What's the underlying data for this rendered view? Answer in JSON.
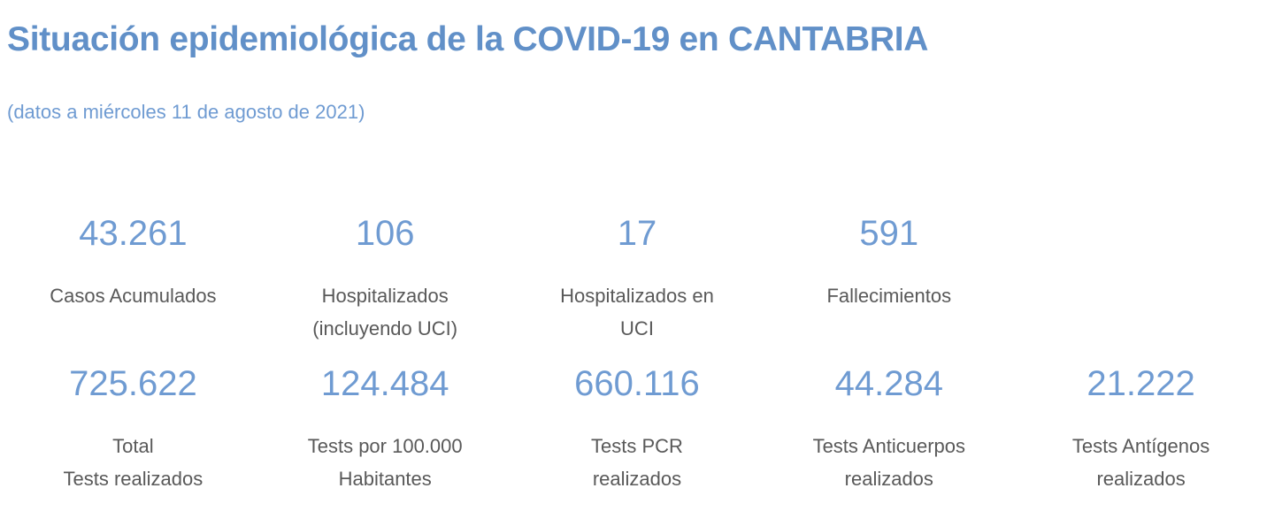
{
  "header": {
    "title": "Situación epidemiológica de la COVID-19 en CANTABRIA",
    "subtitle": "(datos a miércoles 11 de agosto de 2021)"
  },
  "colors": {
    "title_blue": "#6190c8",
    "accent_blue": "#6f9bd2",
    "label_gray": "#595959",
    "background": "#ffffff"
  },
  "stats": {
    "row1": [
      {
        "value": "43.261",
        "label_lines": [
          "Casos Acumulados"
        ]
      },
      {
        "value": "106",
        "label_lines": [
          "Hospitalizados",
          "(incluyendo UCI)"
        ]
      },
      {
        "value": "17",
        "label_lines": [
          "Hospitalizados en",
          "UCI"
        ]
      },
      {
        "value": "591",
        "label_lines": [
          "Fallecimientos"
        ]
      }
    ],
    "row2": [
      {
        "value": "725.622",
        "label_lines": [
          "Total",
          "Tests realizados"
        ]
      },
      {
        "value": "124.484",
        "label_lines": [
          "Tests por 100.000",
          "Habitantes"
        ]
      },
      {
        "value": "660.116",
        "label_lines": [
          "Tests PCR",
          "realizados"
        ]
      },
      {
        "value": "44.284",
        "label_lines": [
          "Tests Anticuerpos",
          "realizados"
        ]
      },
      {
        "value": "21.222",
        "label_lines": [
          "Tests Antígenos",
          "realizados"
        ]
      }
    ]
  }
}
